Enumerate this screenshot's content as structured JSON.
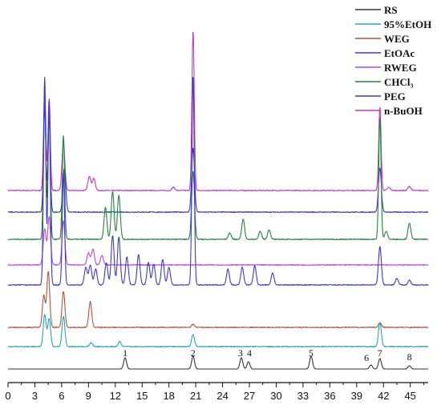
{
  "chart_data": {
    "type": "line",
    "xlim": [
      0,
      47
    ],
    "x_ticks": [
      "0",
      "3",
      "6",
      "9",
      "12",
      "15",
      "18",
      "21",
      "24",
      "27",
      "30",
      "33",
      "36",
      "39",
      "42",
      "45"
    ],
    "grid": false,
    "legend_position": "top-right",
    "series": [
      {
        "name": "RS",
        "color": "#333333",
        "baseline": 0,
        "peaks": [
          [
            13.1,
            14
          ],
          [
            20.7,
            16
          ],
          [
            26.1,
            14
          ],
          [
            26.9,
            9
          ],
          [
            33.9,
            16
          ],
          [
            40.6,
            5
          ],
          [
            41.6,
            13
          ],
          [
            44.9,
            4
          ]
        ]
      },
      {
        "name": "95%EtOH",
        "color": "#2aa3b8",
        "baseline": 28,
        "peaks": [
          [
            4.1,
            40
          ],
          [
            4.6,
            35
          ],
          [
            6.2,
            38
          ],
          [
            9.3,
            5
          ],
          [
            12.5,
            6
          ],
          [
            20.7,
            15
          ],
          [
            41.6,
            30
          ]
        ]
      },
      {
        "name": "WEG",
        "color": "#b4533a",
        "baseline": 52,
        "peaks": [
          [
            4.0,
            40
          ],
          [
            4.5,
            70
          ],
          [
            6.2,
            45
          ],
          [
            9.2,
            32
          ],
          [
            20.7,
            4
          ],
          [
            41.6,
            6
          ]
        ]
      },
      {
        "name": "EtOAc",
        "color": "#3a3ad0",
        "baseline": 105,
        "peaks": [
          [
            4.1,
            260
          ],
          [
            4.6,
            230
          ],
          [
            6.2,
            140
          ],
          [
            8.7,
            22
          ],
          [
            9.2,
            25
          ],
          [
            9.8,
            20
          ],
          [
            11.0,
            28
          ],
          [
            11.7,
            62
          ],
          [
            12.4,
            60
          ],
          [
            13.3,
            35
          ],
          [
            14.6,
            38
          ],
          [
            15.7,
            28
          ],
          [
            16.3,
            26
          ],
          [
            17.3,
            32
          ],
          [
            18.0,
            22
          ],
          [
            20.7,
            262
          ],
          [
            24.6,
            20
          ],
          [
            26.2,
            22
          ],
          [
            27.6,
            24
          ],
          [
            29.6,
            15
          ],
          [
            41.6,
            48
          ],
          [
            43.5,
            8
          ],
          [
            44.9,
            6
          ]
        ]
      },
      {
        "name": "RWEG",
        "color": "#b848e0",
        "baseline": 130,
        "peaks": [
          [
            4.1,
            45
          ],
          [
            4.6,
            60
          ],
          [
            6.2,
            55
          ],
          [
            9.0,
            15
          ],
          [
            9.5,
            20
          ],
          [
            10.5,
            12
          ]
        ]
      },
      {
        "name": "CHCl₃",
        "color": "#23843a",
        "baseline": 162,
        "peaks": [
          [
            4.1,
            180
          ],
          [
            4.6,
            155
          ],
          [
            6.2,
            130
          ],
          [
            10.9,
            40
          ],
          [
            11.7,
            60
          ],
          [
            12.4,
            55
          ],
          [
            20.7,
            85
          ],
          [
            24.8,
            8
          ],
          [
            26.3,
            25
          ],
          [
            28.2,
            10
          ],
          [
            29.2,
            12
          ],
          [
            41.6,
            153
          ],
          [
            42.3,
            10
          ],
          [
            44.9,
            20
          ]
        ]
      },
      {
        "name": "PEG",
        "color": "#3a3aa8",
        "baseline": 196,
        "peaks": [
          [
            4.1,
            130
          ],
          [
            4.6,
            120
          ],
          [
            6.3,
            55
          ],
          [
            20.7,
            80
          ],
          [
            41.6,
            55
          ]
        ]
      },
      {
        "name": "n-BuOH",
        "color": "#c23ac2",
        "baseline": 223,
        "peaks": [
          [
            4.1,
            125
          ],
          [
            4.6,
            115
          ],
          [
            6.2,
            60
          ],
          [
            9.1,
            18
          ],
          [
            9.6,
            15
          ],
          [
            18.5,
            4
          ],
          [
            20.7,
            200
          ],
          [
            41.6,
            105
          ],
          [
            42.6,
            4
          ],
          [
            44.9,
            5
          ]
        ]
      }
    ],
    "peak_labels": [
      {
        "x": 13.1,
        "text": "1"
      },
      {
        "x": 20.7,
        "text": "2"
      },
      {
        "x": 26.0,
        "text": "3"
      },
      {
        "x": 27.0,
        "text": "4"
      },
      {
        "x": 33.9,
        "text": "5"
      },
      {
        "x": 40.1,
        "text": "6"
      },
      {
        "x": 41.6,
        "text": "7"
      },
      {
        "x": 44.9,
        "text": "8"
      }
    ]
  }
}
